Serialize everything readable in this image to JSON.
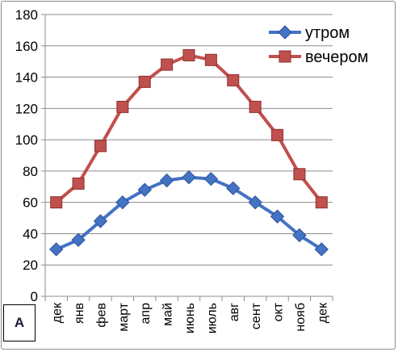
{
  "chart_data": {
    "type": "line",
    "categories": [
      "дек",
      "янв",
      "фев",
      "март",
      "апр",
      "май",
      "июнь",
      "июль",
      "авг",
      "сент",
      "окт",
      "нояб",
      "дек"
    ],
    "series": [
      {
        "name": "утром",
        "color": "#4472C4",
        "marker": "diamond",
        "values": [
          30,
          36,
          48,
          60,
          68,
          74,
          76,
          75,
          69,
          60,
          51,
          39,
          30
        ]
      },
      {
        "name": "вечером",
        "color": "#C0504D",
        "marker": "square",
        "values": [
          60,
          72,
          96,
          121,
          137,
          148,
          154,
          151,
          138,
          121,
          103,
          78,
          60
        ]
      }
    ],
    "ylim": [
      0,
      180
    ],
    "yticks": [
      0,
      20,
      40,
      60,
      80,
      100,
      120,
      140,
      160,
      180
    ],
    "grid": true,
    "legend": "top-right"
  },
  "corner_label": "A"
}
